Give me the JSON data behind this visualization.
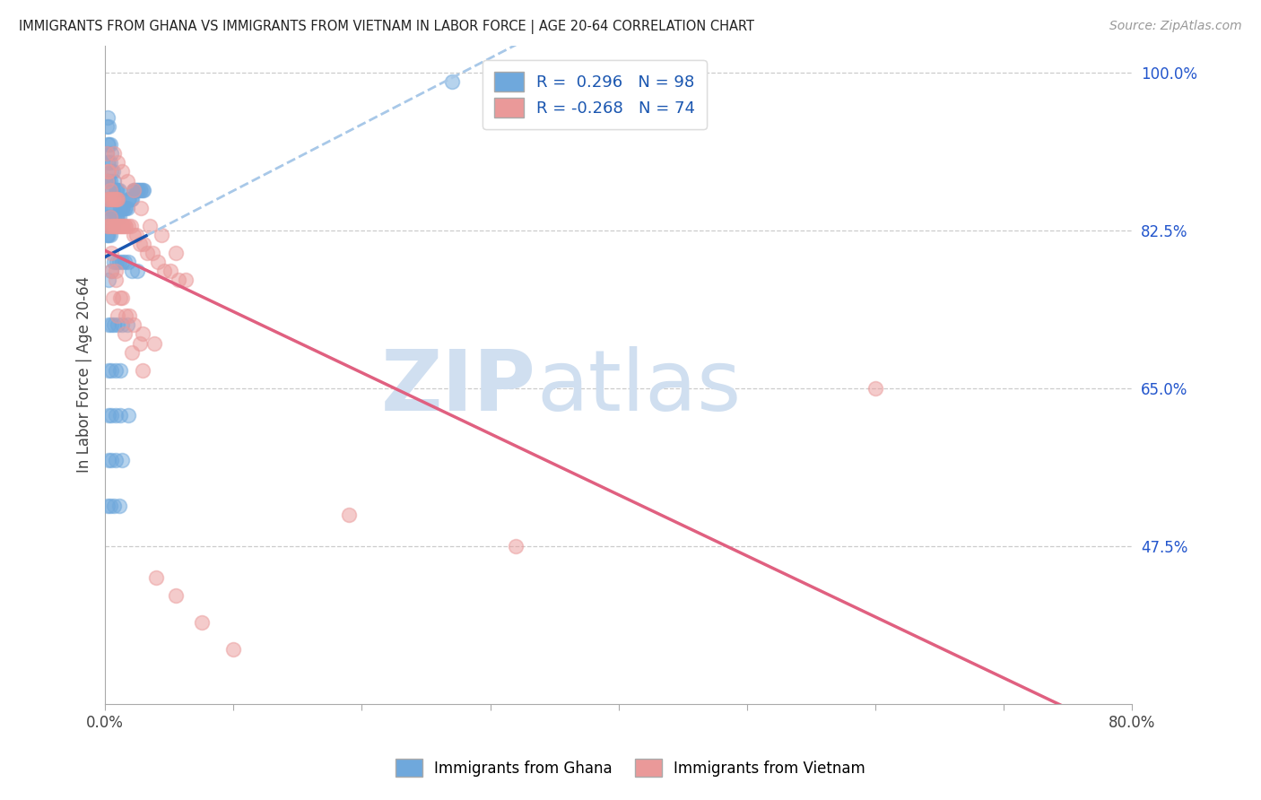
{
  "title": "IMMIGRANTS FROM GHANA VS IMMIGRANTS FROM VIETNAM IN LABOR FORCE | AGE 20-64 CORRELATION CHART",
  "source": "Source: ZipAtlas.com",
  "ylabel": "In Labor Force | Age 20-64",
  "xlim": [
    0.0,
    0.8
  ],
  "ylim": [
    0.3,
    1.03
  ],
  "ytick_vals": [
    0.475,
    0.65,
    0.825,
    1.0
  ],
  "ytick_labels": [
    "47.5%",
    "65.0%",
    "82.5%",
    "100.0%"
  ],
  "xtick_vals": [
    0.0,
    0.1,
    0.2,
    0.3,
    0.4,
    0.5,
    0.6,
    0.7,
    0.8
  ],
  "ghana_R": 0.296,
  "ghana_N": 98,
  "vietnam_R": -0.268,
  "vietnam_N": 74,
  "ghana_color": "#6fa8dc",
  "vietnam_color": "#ea9999",
  "ghana_line_color": "#1a56b0",
  "vietnam_line_color": "#e06080",
  "dashed_color": "#a8c8e8",
  "watermark_zip": "ZIP",
  "watermark_atlas": "atlas",
  "watermark_color": "#d0dff0",
  "ghana_x": [
    0.001,
    0.001,
    0.001,
    0.001,
    0.001,
    0.002,
    0.002,
    0.002,
    0.002,
    0.002,
    0.002,
    0.002,
    0.003,
    0.003,
    0.003,
    0.003,
    0.003,
    0.003,
    0.003,
    0.004,
    0.004,
    0.004,
    0.004,
    0.004,
    0.004,
    0.005,
    0.005,
    0.005,
    0.005,
    0.005,
    0.006,
    0.006,
    0.006,
    0.006,
    0.007,
    0.007,
    0.007,
    0.008,
    0.008,
    0.009,
    0.009,
    0.01,
    0.01,
    0.011,
    0.011,
    0.012,
    0.013,
    0.014,
    0.015,
    0.016,
    0.017,
    0.018,
    0.019,
    0.02,
    0.021,
    0.022,
    0.023,
    0.024,
    0.025,
    0.026,
    0.027,
    0.028,
    0.029,
    0.03,
    0.003,
    0.005,
    0.007,
    0.009,
    0.011,
    0.013,
    0.015,
    0.018,
    0.021,
    0.025,
    0.003,
    0.005,
    0.007,
    0.01,
    0.013,
    0.017,
    0.003,
    0.005,
    0.008,
    0.012,
    0.003,
    0.005,
    0.008,
    0.012,
    0.018,
    0.003,
    0.005,
    0.008,
    0.013,
    0.002,
    0.004,
    0.007,
    0.011,
    0.27
  ],
  "ghana_y": [
    0.82,
    0.85,
    0.88,
    0.91,
    0.94,
    0.82,
    0.84,
    0.86,
    0.88,
    0.9,
    0.92,
    0.95,
    0.82,
    0.84,
    0.86,
    0.88,
    0.9,
    0.92,
    0.94,
    0.82,
    0.84,
    0.86,
    0.88,
    0.9,
    0.92,
    0.83,
    0.85,
    0.87,
    0.89,
    0.91,
    0.83,
    0.85,
    0.87,
    0.89,
    0.84,
    0.86,
    0.88,
    0.84,
    0.87,
    0.84,
    0.87,
    0.84,
    0.87,
    0.84,
    0.87,
    0.85,
    0.85,
    0.85,
    0.85,
    0.85,
    0.85,
    0.86,
    0.86,
    0.86,
    0.86,
    0.87,
    0.87,
    0.87,
    0.87,
    0.87,
    0.87,
    0.87,
    0.87,
    0.87,
    0.77,
    0.78,
    0.79,
    0.79,
    0.79,
    0.79,
    0.79,
    0.79,
    0.78,
    0.78,
    0.72,
    0.72,
    0.72,
    0.72,
    0.72,
    0.72,
    0.67,
    0.67,
    0.67,
    0.67,
    0.62,
    0.62,
    0.62,
    0.62,
    0.62,
    0.57,
    0.57,
    0.57,
    0.57,
    0.52,
    0.52,
    0.52,
    0.52,
    0.99
  ],
  "vietnam_x": [
    0.001,
    0.001,
    0.002,
    0.002,
    0.002,
    0.003,
    0.003,
    0.003,
    0.004,
    0.004,
    0.005,
    0.005,
    0.006,
    0.006,
    0.007,
    0.007,
    0.008,
    0.008,
    0.009,
    0.009,
    0.01,
    0.01,
    0.011,
    0.012,
    0.013,
    0.014,
    0.015,
    0.016,
    0.018,
    0.02,
    0.022,
    0.024,
    0.027,
    0.03,
    0.033,
    0.037,
    0.041,
    0.046,
    0.051,
    0.057,
    0.063,
    0.007,
    0.01,
    0.013,
    0.017,
    0.022,
    0.028,
    0.035,
    0.044,
    0.055,
    0.005,
    0.008,
    0.012,
    0.016,
    0.022,
    0.029,
    0.038,
    0.006,
    0.01,
    0.015,
    0.021,
    0.029,
    0.005,
    0.008,
    0.013,
    0.019,
    0.027,
    0.19,
    0.32,
    0.6,
    0.04,
    0.055,
    0.075,
    0.1
  ],
  "vietnam_y": [
    0.88,
    0.91,
    0.83,
    0.86,
    0.89,
    0.83,
    0.86,
    0.89,
    0.84,
    0.87,
    0.83,
    0.86,
    0.83,
    0.86,
    0.83,
    0.86,
    0.83,
    0.86,
    0.83,
    0.86,
    0.83,
    0.86,
    0.83,
    0.83,
    0.83,
    0.83,
    0.83,
    0.83,
    0.83,
    0.83,
    0.82,
    0.82,
    0.81,
    0.81,
    0.8,
    0.8,
    0.79,
    0.78,
    0.78,
    0.77,
    0.77,
    0.91,
    0.9,
    0.89,
    0.88,
    0.87,
    0.85,
    0.83,
    0.82,
    0.8,
    0.78,
    0.77,
    0.75,
    0.73,
    0.72,
    0.71,
    0.7,
    0.75,
    0.73,
    0.71,
    0.69,
    0.67,
    0.8,
    0.78,
    0.75,
    0.73,
    0.7,
    0.51,
    0.475,
    0.65,
    0.44,
    0.42,
    0.39,
    0.36
  ]
}
